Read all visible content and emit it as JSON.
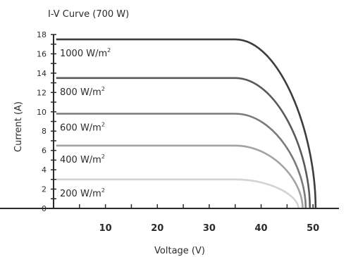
{
  "chart_data": {
    "type": "line",
    "title": "I-V Curve (700 W)",
    "xlabel": "Voltage (V)",
    "ylabel": "Current (A)",
    "xlim": [
      0,
      55
    ],
    "ylim": [
      0,
      18
    ],
    "x_ticks": [
      "10",
      "20",
      "30",
      "40",
      "50"
    ],
    "y_ticks": [
      "0",
      "1",
      "2",
      "3",
      "4",
      "5",
      "6",
      "7",
      "8",
      "9",
      "10",
      "11",
      "12",
      "13",
      "14",
      "15",
      "16",
      "17",
      "18"
    ],
    "y_tick_labels": [
      "0",
      "2",
      "4",
      "6",
      "8",
      "10",
      "12",
      "14",
      "16",
      "18"
    ],
    "grid": false,
    "series": [
      {
        "name": "1000 W/m²",
        "label_base": "1000 W/m",
        "label_sup": "2",
        "isc": 17.5,
        "knee_v": 35,
        "voc": 50.5,
        "color": "#3d3d3d"
      },
      {
        "name": "800 W/m²",
        "label_base": "800 W/m",
        "label_sup": "2",
        "isc": 13.5,
        "knee_v": 35,
        "voc": 49.4,
        "color": "#595959"
      },
      {
        "name": "600 W/m²",
        "label_base": "600 W/m",
        "label_sup": "2",
        "isc": 9.8,
        "knee_v": 35,
        "voc": 48.6,
        "color": "#7a7a7a"
      },
      {
        "name": "400 W/m²",
        "label_base": "400 W/m",
        "label_sup": "2",
        "isc": 6.5,
        "knee_v": 35,
        "voc": 48.0,
        "color": "#a3a3a3"
      },
      {
        "name": "200 W/m²",
        "label_base": "200 W/m",
        "label_sup": "2",
        "isc": 3.0,
        "knee_v": 35,
        "voc": 47.2,
        "color": "#d3d3d3"
      }
    ]
  }
}
